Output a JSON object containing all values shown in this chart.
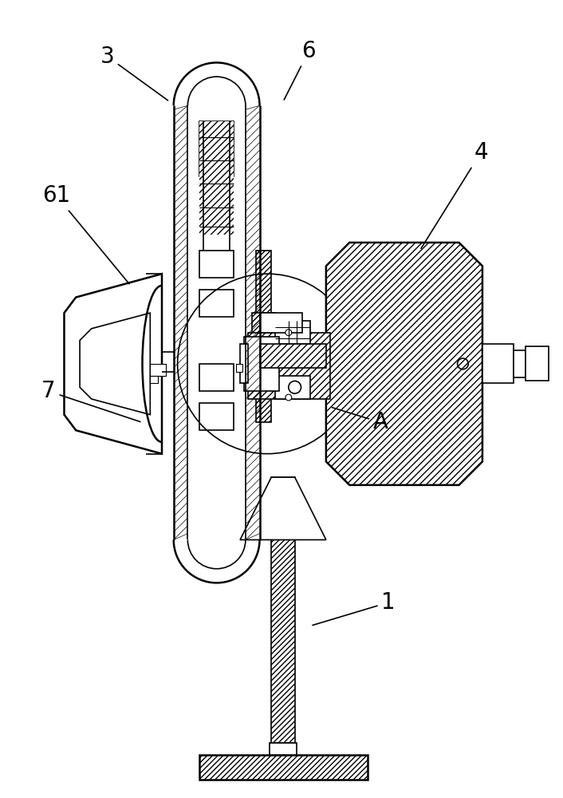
{
  "bg_color": "#ffffff",
  "line_color": "#000000",
  "figsize": [
    7.06,
    10.0
  ],
  "dpi": 100,
  "label_fontsize": 20,
  "labels": {
    "3": [
      130,
      62,
      210,
      120
    ],
    "6": [
      388,
      55,
      355,
      120
    ],
    "4": [
      608,
      185,
      530,
      310
    ],
    "61": [
      65,
      240,
      160,
      355
    ],
    "7": [
      55,
      490,
      175,
      530
    ],
    "A": [
      480,
      530,
      415,
      510
    ],
    "1": [
      490,
      760,
      390,
      790
    ]
  }
}
